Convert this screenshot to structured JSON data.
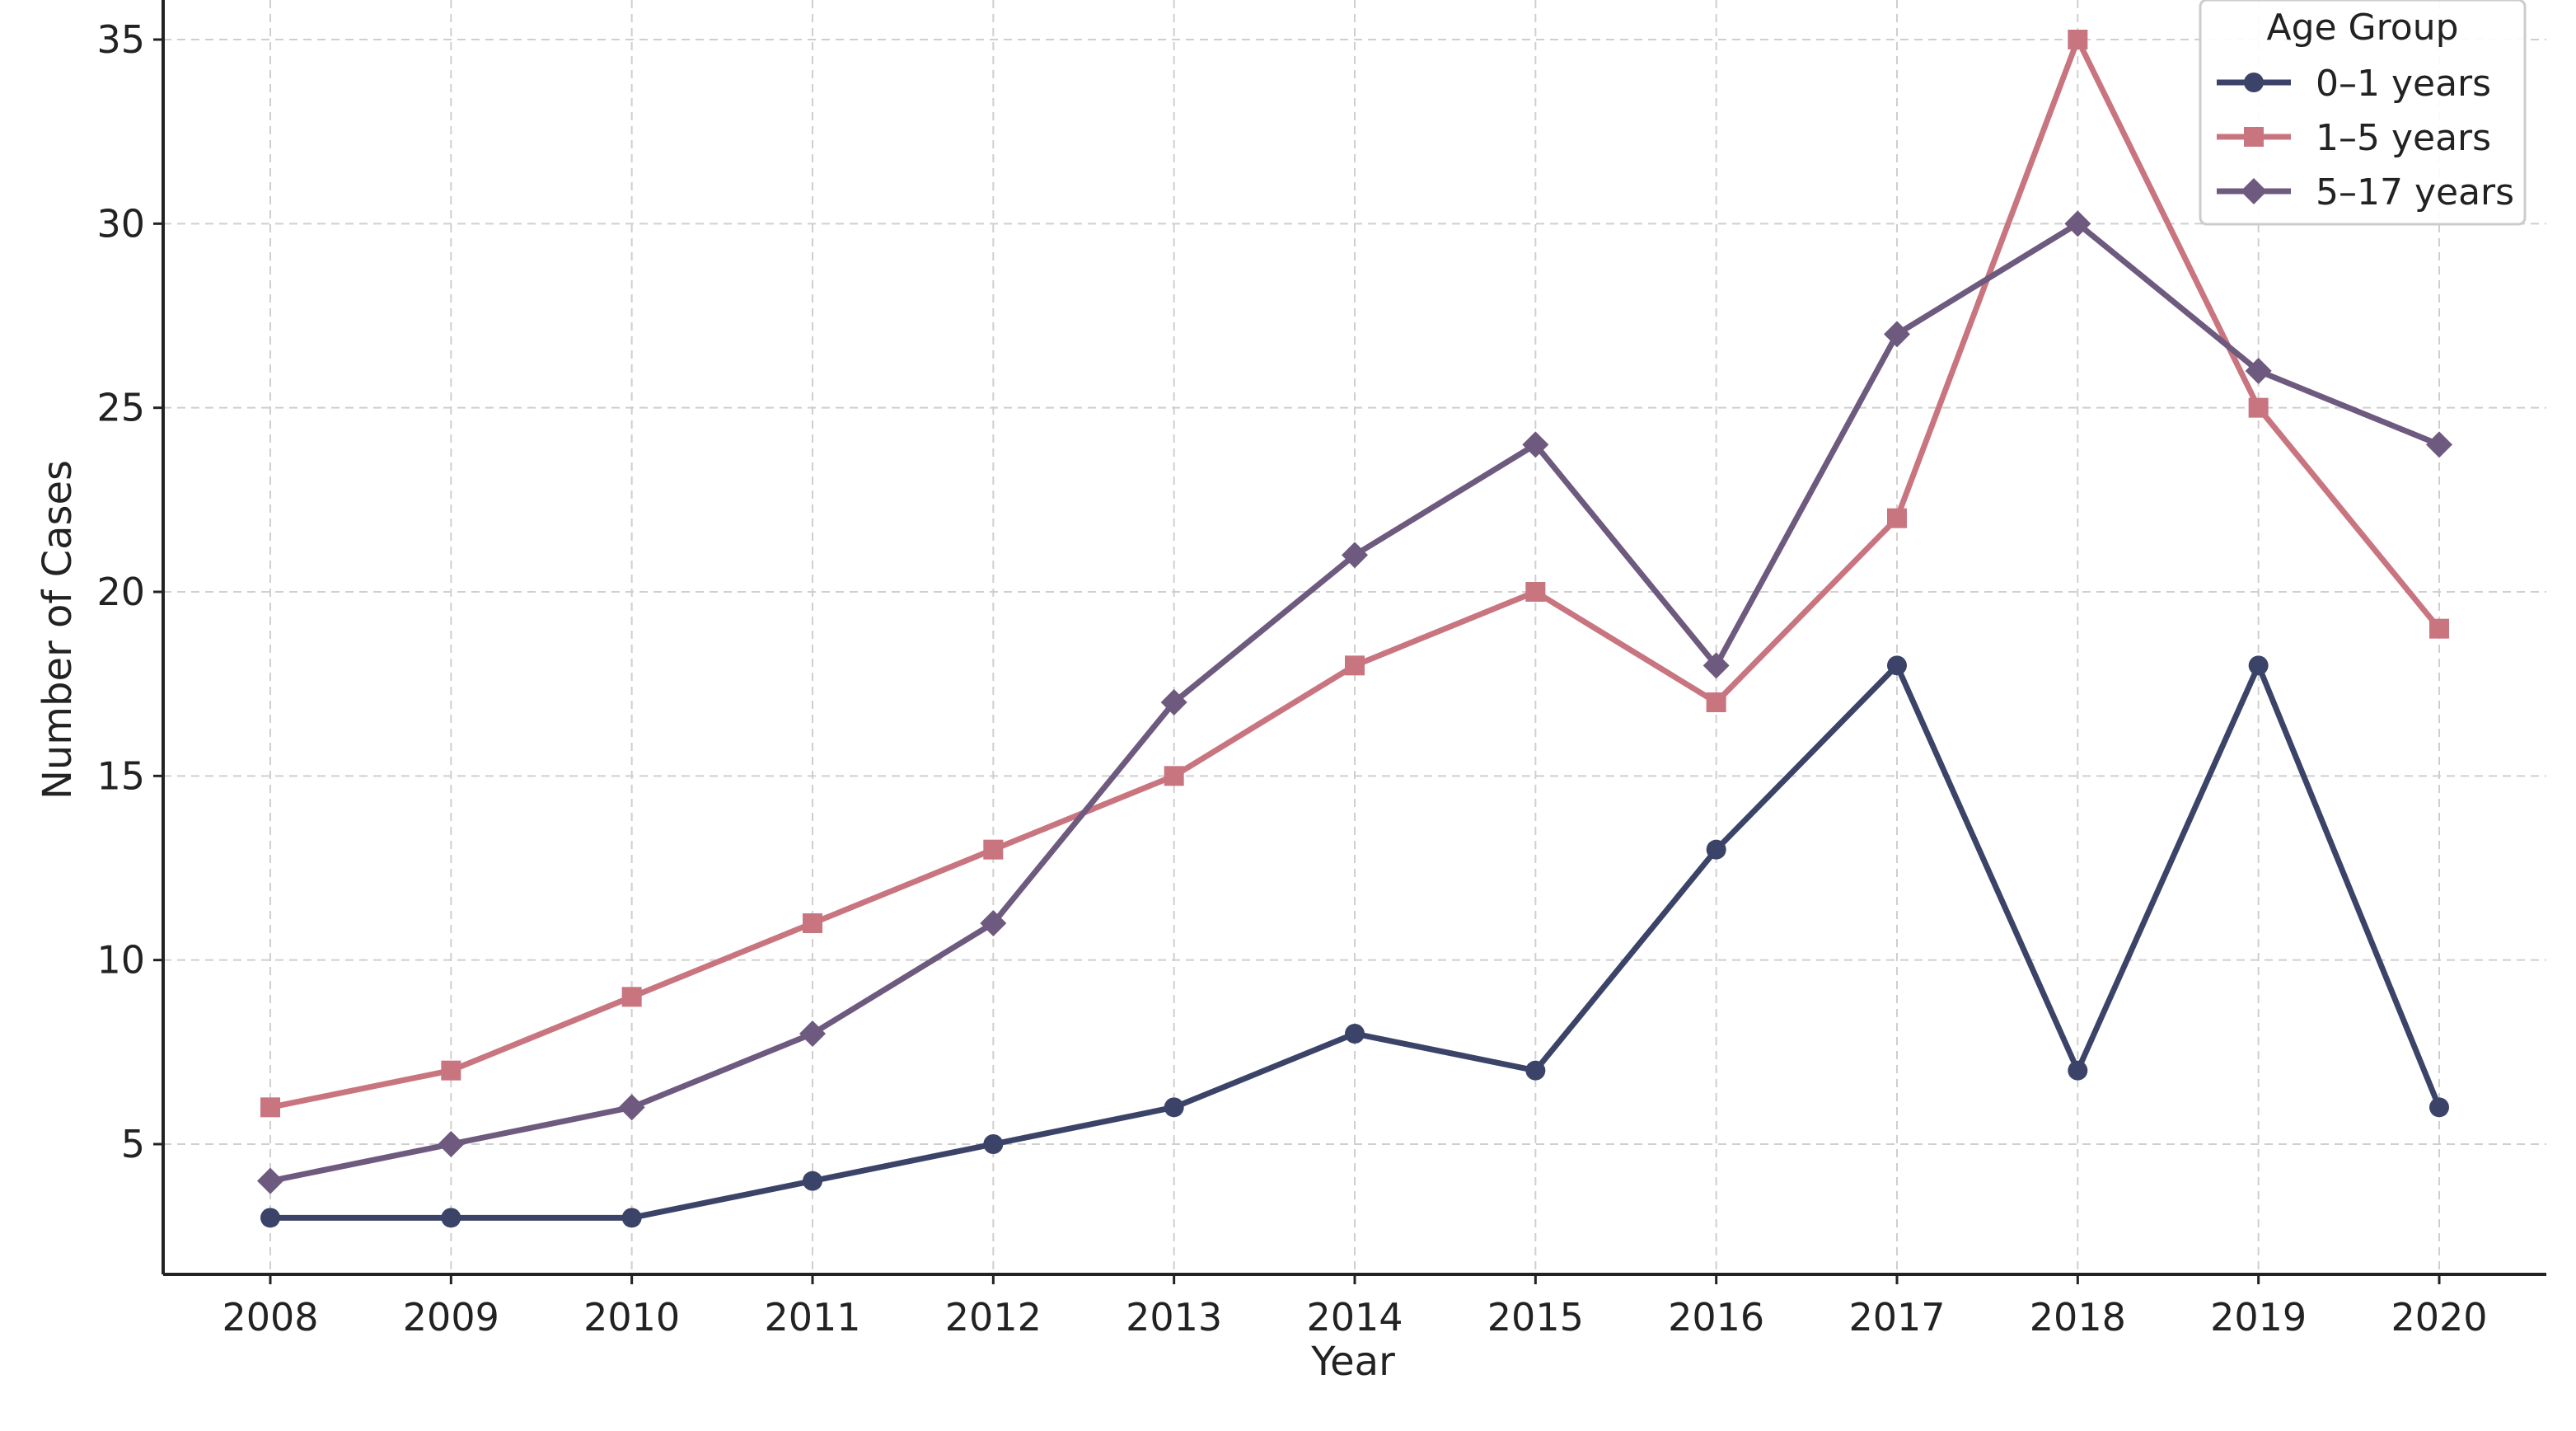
{
  "chart_data": {
    "type": "line",
    "title": "",
    "xlabel": "Year",
    "ylabel": "Number of Cases",
    "x": [
      2008,
      2009,
      2010,
      2011,
      2012,
      2013,
      2014,
      2015,
      2016,
      2017,
      2018,
      2019,
      2020
    ],
    "yticks": [
      5,
      10,
      15,
      20,
      25,
      30,
      35
    ],
    "ylim": [
      1.5,
      35
    ],
    "grid": true,
    "legend": {
      "title": "Age Group",
      "position": "top-right"
    },
    "series": [
      {
        "name": "0–1 years",
        "marker": "circle",
        "color": "#3b4468",
        "values": [
          3,
          3,
          3,
          4,
          5,
          6,
          8,
          7,
          13,
          18,
          7,
          18,
          6
        ]
      },
      {
        "name": "1–5 years",
        "marker": "square",
        "color": "#c97580",
        "values": [
          6,
          7,
          9,
          11,
          13,
          15,
          18,
          20,
          17,
          22,
          35,
          25,
          19
        ]
      },
      {
        "name": "5–17 years",
        "marker": "diamond",
        "color": "#6e5a7e",
        "values": [
          4,
          5,
          6,
          8,
          11,
          17,
          21,
          24,
          18,
          27,
          30,
          26,
          24
        ]
      }
    ]
  }
}
